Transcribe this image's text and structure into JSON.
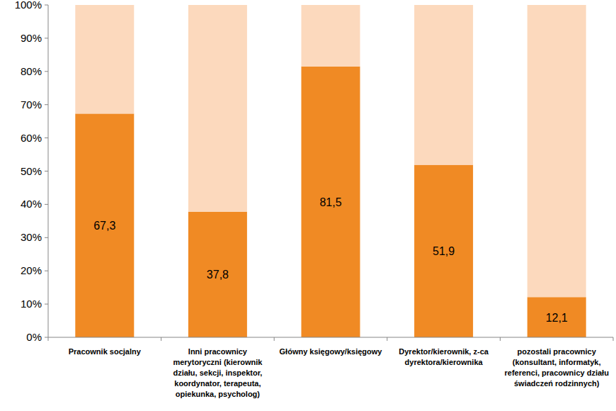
{
  "chart_data": {
    "type": "bar",
    "stacked": true,
    "grid": false,
    "categories": [
      "Pracownik socjalny",
      "Inni pracownicy merytoryczni (kierownik działu, sekcji, inspektor, koordynator, terapeuta, opiekunka, psycholog)",
      "Główny księgowy/księgowy",
      "Dyrektor/kierownik, z-ca dyrektora/kierownika",
      "pozostali pracownicy (konsultant, informatyk, referenci, pracownicy działu świadczeń rodzinnych)"
    ],
    "series": [
      {
        "color": "#f08a24",
        "values": [
          67.3,
          37.8,
          81.5,
          51.9,
          12.1
        ],
        "value_labels": [
          "67,3",
          "37,8",
          "81,5",
          "51,9",
          "12,1"
        ],
        "data_labels": true
      },
      {
        "color": "#fcd9bd",
        "values": [
          32.7,
          62.2,
          18.5,
          48.1,
          87.9
        ]
      }
    ],
    "ylim": [
      0,
      100
    ],
    "yticks": [
      {
        "value": 0,
        "label": "0%"
      },
      {
        "value": 10,
        "label": "10%"
      },
      {
        "value": 20,
        "label": "20%"
      },
      {
        "value": 30,
        "label": "30%"
      },
      {
        "value": 40,
        "label": "40%"
      },
      {
        "value": 50,
        "label": "50%"
      },
      {
        "value": 60,
        "label": "60%"
      },
      {
        "value": 70,
        "label": "70%"
      },
      {
        "value": 80,
        "label": "80%"
      },
      {
        "value": 90,
        "label": "90%"
      },
      {
        "value": 100,
        "label": "100%"
      }
    ]
  }
}
